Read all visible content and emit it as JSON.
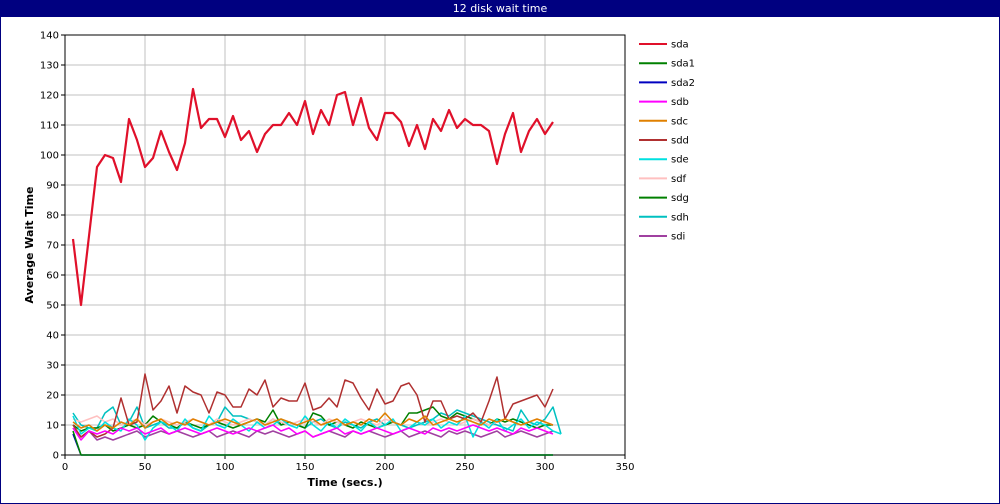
{
  "window": {
    "title": "12 disk wait time"
  },
  "chart_data": {
    "type": "line",
    "title": "12 disk wait time",
    "xlabel": "Time (secs.)",
    "ylabel": "Average Wait Time",
    "xlim": [
      0,
      350
    ],
    "ylim": [
      0,
      140
    ],
    "xticks": [
      0,
      50,
      100,
      150,
      200,
      250,
      300,
      350
    ],
    "yticks": [
      0,
      10,
      20,
      30,
      40,
      50,
      60,
      70,
      80,
      90,
      100,
      110,
      120,
      130,
      140
    ],
    "grid": true,
    "legend_position": "right",
    "series": [
      {
        "name": "sda",
        "color": "#e0102a",
        "x": [
          5,
          10,
          15,
          20,
          25,
          30,
          35,
          40,
          45,
          50,
          55,
          60,
          65,
          70,
          75,
          80,
          85,
          90,
          95,
          100,
          105,
          110,
          115,
          120,
          125,
          130,
          135,
          140,
          145,
          150,
          155,
          160,
          165,
          170,
          175,
          180,
          185,
          190,
          195,
          200,
          205,
          210,
          215,
          220,
          225,
          230,
          235,
          240,
          245,
          250,
          255,
          260,
          265,
          270,
          275,
          280,
          285,
          290,
          295,
          300,
          305
        ],
        "y": [
          72,
          50,
          73,
          96,
          100,
          99,
          91,
          112,
          105,
          96,
          99,
          108,
          101,
          95,
          104,
          122,
          109,
          112,
          112,
          106,
          113,
          105,
          108,
          101,
          107,
          110,
          110,
          114,
          110,
          118,
          107,
          115,
          110,
          120,
          121,
          110,
          119,
          109,
          105,
          114,
          114,
          111,
          103,
          110,
          102,
          112,
          108,
          115,
          109,
          112,
          110,
          110,
          108,
          97,
          107,
          114,
          101,
          108,
          112,
          107,
          111
        ]
      },
      {
        "name": "sda1",
        "color": "#008000",
        "x": [
          5,
          10,
          15,
          20,
          30,
          50,
          100,
          150,
          200,
          250,
          300,
          305
        ],
        "y": [
          8,
          0,
          0,
          0,
          0,
          0,
          0,
          0,
          0,
          0,
          0,
          0
        ]
      },
      {
        "name": "sda2",
        "color": "#0000c0",
        "x": [
          5,
          10,
          15,
          20,
          30,
          50,
          100,
          150,
          200,
          250,
          300,
          305
        ],
        "y": [
          7,
          0,
          0,
          0,
          0,
          0,
          0,
          0,
          0,
          0,
          0,
          0
        ]
      },
      {
        "name": "sdb",
        "color": "#ff00ff",
        "x": [
          5,
          10,
          15,
          20,
          25,
          30,
          35,
          40,
          45,
          50,
          55,
          60,
          65,
          70,
          75,
          80,
          85,
          90,
          95,
          100,
          105,
          110,
          115,
          120,
          125,
          130,
          135,
          140,
          145,
          150,
          155,
          160,
          165,
          170,
          175,
          180,
          185,
          190,
          195,
          200,
          205,
          210,
          215,
          220,
          225,
          230,
          235,
          240,
          245,
          250,
          255,
          260,
          265,
          270,
          275,
          280,
          285,
          290,
          295,
          300,
          305
        ],
        "y": [
          9,
          5,
          8,
          7,
          8,
          7,
          9,
          8,
          9,
          7,
          8,
          9,
          7,
          8,
          9,
          8,
          7,
          8,
          9,
          8,
          7,
          8,
          9,
          8,
          9,
          10,
          8,
          9,
          7,
          8,
          6,
          7,
          8,
          9,
          7,
          8,
          7,
          8,
          9,
          8,
          7,
          8,
          9,
          8,
          7,
          9,
          8,
          9,
          8,
          9,
          10,
          9,
          8,
          9,
          8,
          7,
          9,
          8,
          9,
          8,
          7
        ]
      },
      {
        "name": "sdc",
        "color": "#e08000",
        "x": [
          5,
          10,
          15,
          20,
          25,
          30,
          35,
          40,
          45,
          50,
          55,
          60,
          65,
          70,
          75,
          80,
          85,
          90,
          95,
          100,
          105,
          110,
          115,
          120,
          125,
          130,
          135,
          140,
          145,
          150,
          155,
          160,
          165,
          170,
          175,
          180,
          185,
          190,
          195,
          200,
          205,
          210,
          215,
          220,
          225,
          230,
          235,
          240,
          245,
          250,
          255,
          260,
          265,
          270,
          275,
          280,
          285,
          290,
          295,
          300,
          305
        ],
        "y": [
          11,
          9,
          10,
          8,
          10,
          9,
          11,
          10,
          12,
          9,
          11,
          12,
          10,
          11,
          10,
          12,
          11,
          10,
          11,
          12,
          11,
          10,
          11,
          12,
          10,
          11,
          12,
          11,
          10,
          11,
          12,
          10,
          11,
          12,
          10,
          11,
          10,
          12,
          11,
          14,
          11,
          10,
          12,
          11,
          13,
          10,
          11,
          12,
          11,
          12,
          11,
          10,
          12,
          11,
          12,
          11,
          10,
          11,
          12,
          11,
          10
        ]
      },
      {
        "name": "sdd",
        "color": "#b03030",
        "x": [
          5,
          10,
          15,
          20,
          25,
          30,
          35,
          40,
          45,
          50,
          55,
          60,
          65,
          70,
          75,
          80,
          85,
          90,
          95,
          100,
          105,
          110,
          115,
          120,
          125,
          130,
          135,
          140,
          145,
          150,
          155,
          160,
          165,
          170,
          175,
          180,
          185,
          190,
          195,
          200,
          205,
          210,
          215,
          220,
          225,
          230,
          235,
          240,
          245,
          250,
          255,
          260,
          265,
          270,
          275,
          280,
          285,
          290,
          295,
          300,
          305
        ],
        "y": [
          10,
          6,
          8,
          6,
          7,
          9,
          19,
          10,
          11,
          27,
          15,
          18,
          23,
          14,
          23,
          21,
          20,
          14,
          21,
          20,
          16,
          16,
          22,
          20,
          25,
          16,
          19,
          18,
          18,
          24,
          15,
          16,
          19,
          16,
          25,
          24,
          19,
          15,
          22,
          17,
          18,
          23,
          24,
          20,
          11,
          18,
          18,
          12,
          13,
          12,
          14,
          11,
          18,
          26,
          12,
          17,
          18,
          19,
          20,
          16,
          22
        ]
      },
      {
        "name": "sde",
        "color": "#00e0e0",
        "x": [
          5,
          10,
          15,
          20,
          25,
          30,
          35,
          40,
          45,
          50,
          55,
          60,
          65,
          70,
          75,
          80,
          85,
          90,
          95,
          100,
          105,
          110,
          115,
          120,
          125,
          130,
          135,
          140,
          145,
          150,
          155,
          160,
          165,
          170,
          175,
          180,
          185,
          190,
          195,
          200,
          205,
          210,
          215,
          220,
          225,
          230,
          235,
          240,
          245,
          250,
          255,
          260,
          265,
          270,
          275,
          280,
          285,
          290,
          295,
          300,
          305,
          310
        ],
        "y": [
          13,
          7,
          9,
          8,
          11,
          9,
          8,
          12,
          10,
          5,
          9,
          11,
          10,
          8,
          12,
          9,
          8,
          13,
          10,
          9,
          12,
          10,
          8,
          11,
          9,
          10,
          12,
          10,
          9,
          13,
          10,
          8,
          11,
          9,
          12,
          10,
          8,
          11,
          9,
          10,
          12,
          8,
          9,
          11,
          10,
          12,
          9,
          11,
          10,
          13,
          6,
          11,
          9,
          12,
          8,
          10,
          12,
          9,
          11,
          10,
          8,
          7
        ]
      },
      {
        "name": "sdf",
        "color": "#ffc0c0",
        "x": [
          5,
          10,
          15,
          20,
          25,
          30,
          35,
          40,
          45,
          50,
          55,
          60,
          65,
          70,
          75,
          80,
          85,
          90,
          95,
          100,
          105,
          110,
          115,
          120,
          125,
          130,
          135,
          140,
          145,
          150,
          155,
          160,
          165,
          170,
          175,
          180,
          185,
          190,
          195,
          200,
          205,
          210,
          215,
          220,
          225,
          230,
          235,
          240,
          245,
          250,
          255,
          260,
          265,
          270,
          275,
          280,
          285,
          290,
          295,
          300,
          305
        ],
        "y": [
          12,
          11,
          12,
          13,
          11,
          12,
          10,
          11,
          12,
          10,
          11,
          12,
          11,
          10,
          11,
          12,
          11,
          10,
          12,
          11,
          10,
          11,
          12,
          11,
          10,
          12,
          11,
          10,
          11,
          12,
          11,
          10,
          12,
          11,
          10,
          11,
          12,
          11,
          10,
          12,
          11,
          10,
          12,
          11,
          10,
          11,
          12,
          11,
          10,
          11,
          12,
          11,
          10,
          11,
          12,
          11,
          10,
          11,
          12,
          11,
          10
        ]
      },
      {
        "name": "sdg",
        "color": "#008000",
        "x": [
          5,
          10,
          15,
          20,
          25,
          30,
          35,
          40,
          45,
          50,
          55,
          60,
          65,
          70,
          75,
          80,
          85,
          90,
          95,
          100,
          105,
          110,
          115,
          120,
          125,
          130,
          135,
          140,
          145,
          150,
          155,
          160,
          165,
          170,
          175,
          180,
          185,
          190,
          195,
          200,
          205,
          210,
          215,
          220,
          225,
          230,
          235,
          240,
          245,
          250,
          255,
          260,
          265,
          270,
          275,
          280,
          285,
          290,
          295,
          300,
          305
        ],
        "y": [
          10,
          8,
          9,
          9,
          10,
          8,
          9,
          10,
          9,
          10,
          13,
          11,
          10,
          9,
          11,
          10,
          9,
          10,
          11,
          10,
          9,
          10,
          11,
          12,
          11,
          15,
          10,
          11,
          10,
          9,
          14,
          13,
          10,
          11,
          10,
          9,
          11,
          10,
          9,
          10,
          11,
          10,
          14,
          14,
          15,
          16,
          13,
          12,
          14,
          13,
          12,
          11,
          10,
          12,
          11,
          12,
          11,
          10,
          9,
          10,
          10
        ]
      },
      {
        "name": "sdh",
        "color": "#00c0c0",
        "x": [
          5,
          10,
          15,
          20,
          25,
          30,
          35,
          40,
          45,
          50,
          55,
          60,
          65,
          70,
          75,
          80,
          85,
          90,
          95,
          100,
          105,
          110,
          115,
          120,
          125,
          130,
          135,
          140,
          145,
          150,
          155,
          160,
          165,
          170,
          175,
          180,
          185,
          190,
          195,
          200,
          205,
          210,
          215,
          220,
          225,
          230,
          235,
          240,
          245,
          250,
          255,
          260,
          265,
          270,
          275,
          280,
          285,
          290,
          295,
          300,
          305,
          310
        ],
        "y": [
          14,
          10,
          9,
          9,
          14,
          16,
          10,
          11,
          16,
          9,
          10,
          11,
          9,
          9,
          11,
          9,
          8,
          10,
          11,
          16,
          13,
          13,
          12,
          11,
          10,
          12,
          10,
          11,
          10,
          9,
          11,
          12,
          10,
          9,
          11,
          10,
          9,
          11,
          12,
          10,
          11,
          10,
          9,
          10,
          11,
          12,
          14,
          13,
          15,
          14,
          13,
          12,
          11,
          10,
          9,
          8,
          15,
          11,
          10,
          12,
          16,
          7
        ]
      },
      {
        "name": "sdi",
        "color": "#a040a0",
        "x": [
          5,
          10,
          15,
          20,
          25,
          30,
          35,
          40,
          45,
          50,
          55,
          60,
          65,
          70,
          75,
          80,
          85,
          90,
          95,
          100,
          105,
          110,
          115,
          120,
          125,
          130,
          135,
          140,
          145,
          150,
          155,
          160,
          165,
          170,
          175,
          180,
          185,
          190,
          195,
          200,
          205,
          210,
          215,
          220,
          225,
          230,
          235,
          240,
          245,
          250,
          255,
          260,
          265,
          270,
          275,
          280,
          285,
          290,
          295,
          300,
          305
        ],
        "y": [
          9,
          6,
          8,
          5,
          6,
          5,
          6,
          7,
          8,
          6,
          7,
          8,
          7,
          8,
          7,
          6,
          7,
          8,
          6,
          7,
          8,
          7,
          6,
          8,
          7,
          8,
          7,
          6,
          7,
          8,
          6,
          7,
          8,
          7,
          6,
          8,
          7,
          8,
          7,
          6,
          7,
          8,
          6,
          7,
          8,
          7,
          6,
          8,
          7,
          8,
          7,
          6,
          7,
          8,
          6,
          7,
          8,
          7,
          6,
          7,
          8
        ]
      }
    ]
  }
}
